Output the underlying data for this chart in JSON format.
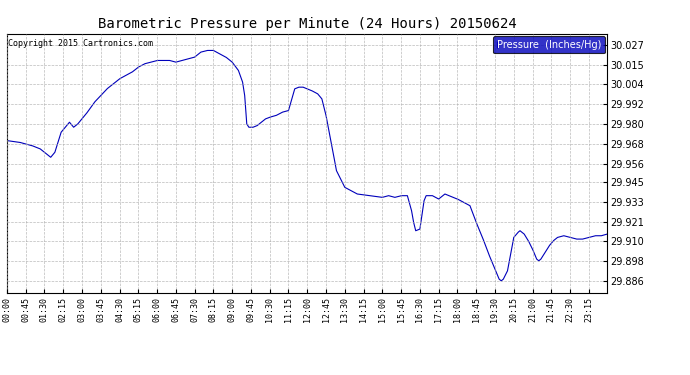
{
  "title": "Barometric Pressure per Minute (24 Hours) 20150624",
  "copyright": "Copyright 2015 Cartronics.com",
  "legend_label": "Pressure  (Inches/Hg)",
  "line_color": "#0000bb",
  "background_color": "#ffffff",
  "grid_color": "#aaaaaa",
  "yticks": [
    29.886,
    29.898,
    29.91,
    29.921,
    29.933,
    29.945,
    29.956,
    29.968,
    29.98,
    29.992,
    30.004,
    30.015,
    30.027
  ],
  "ylim": [
    29.879,
    30.034
  ],
  "xtick_labels": [
    "00:00",
    "00:45",
    "01:30",
    "02:15",
    "03:00",
    "03:45",
    "04:30",
    "05:15",
    "06:00",
    "06:45",
    "07:30",
    "08:15",
    "09:00",
    "09:45",
    "10:30",
    "11:15",
    "12:00",
    "12:45",
    "13:30",
    "14:15",
    "15:00",
    "15:45",
    "16:30",
    "17:15",
    "18:00",
    "18:45",
    "19:30",
    "20:15",
    "21:00",
    "21:45",
    "22:30",
    "23:15"
  ],
  "keypoints": [
    [
      0,
      29.97
    ],
    [
      30,
      29.969
    ],
    [
      60,
      29.967
    ],
    [
      80,
      29.965
    ],
    [
      90,
      29.963
    ],
    [
      100,
      29.961
    ],
    [
      105,
      29.96
    ],
    [
      115,
      29.963
    ],
    [
      130,
      29.975
    ],
    [
      150,
      29.981
    ],
    [
      160,
      29.978
    ],
    [
      170,
      29.98
    ],
    [
      190,
      29.986
    ],
    [
      210,
      29.993
    ],
    [
      240,
      30.001
    ],
    [
      270,
      30.007
    ],
    [
      300,
      30.011
    ],
    [
      315,
      30.014
    ],
    [
      330,
      30.016
    ],
    [
      345,
      30.017
    ],
    [
      360,
      30.018
    ],
    [
      390,
      30.018
    ],
    [
      405,
      30.017
    ],
    [
      420,
      30.018
    ],
    [
      435,
      30.019
    ],
    [
      450,
      30.02
    ],
    [
      465,
      30.023
    ],
    [
      480,
      30.024
    ],
    [
      495,
      30.024
    ],
    [
      510,
      30.022
    ],
    [
      525,
      30.02
    ],
    [
      540,
      30.017
    ],
    [
      555,
      30.012
    ],
    [
      565,
      30.005
    ],
    [
      570,
      29.997
    ],
    [
      575,
      29.98
    ],
    [
      580,
      29.978
    ],
    [
      590,
      29.978
    ],
    [
      600,
      29.979
    ],
    [
      610,
      29.981
    ],
    [
      620,
      29.983
    ],
    [
      630,
      29.984
    ],
    [
      645,
      29.985
    ],
    [
      660,
      29.987
    ],
    [
      675,
      29.988
    ],
    [
      690,
      30.001
    ],
    [
      700,
      30.002
    ],
    [
      710,
      30.002
    ],
    [
      720,
      30.001
    ],
    [
      730,
      30.0
    ],
    [
      745,
      29.998
    ],
    [
      755,
      29.995
    ],
    [
      765,
      29.985
    ],
    [
      775,
      29.972
    ],
    [
      790,
      29.952
    ],
    [
      810,
      29.942
    ],
    [
      840,
      29.938
    ],
    [
      870,
      29.937
    ],
    [
      900,
      29.936
    ],
    [
      915,
      29.937
    ],
    [
      930,
      29.936
    ],
    [
      945,
      29.937
    ],
    [
      960,
      29.937
    ],
    [
      970,
      29.928
    ],
    [
      975,
      29.921
    ],
    [
      980,
      29.916
    ],
    [
      990,
      29.917
    ],
    [
      1000,
      29.934
    ],
    [
      1005,
      29.937
    ],
    [
      1020,
      29.937
    ],
    [
      1035,
      29.935
    ],
    [
      1050,
      29.938
    ],
    [
      1060,
      29.937
    ],
    [
      1070,
      29.936
    ],
    [
      1080,
      29.935
    ],
    [
      1095,
      29.933
    ],
    [
      1110,
      29.931
    ],
    [
      1125,
      29.921
    ],
    [
      1140,
      29.912
    ],
    [
      1155,
      29.902
    ],
    [
      1165,
      29.896
    ],
    [
      1170,
      29.893
    ],
    [
      1180,
      29.887
    ],
    [
      1185,
      29.886
    ],
    [
      1190,
      29.887
    ],
    [
      1200,
      29.892
    ],
    [
      1210,
      29.905
    ],
    [
      1215,
      29.912
    ],
    [
      1225,
      29.915
    ],
    [
      1230,
      29.916
    ],
    [
      1240,
      29.914
    ],
    [
      1250,
      29.91
    ],
    [
      1260,
      29.905
    ],
    [
      1270,
      29.899
    ],
    [
      1275,
      29.898
    ],
    [
      1280,
      29.899
    ],
    [
      1290,
      29.903
    ],
    [
      1300,
      29.907
    ],
    [
      1310,
      29.91
    ],
    [
      1320,
      29.912
    ],
    [
      1335,
      29.913
    ],
    [
      1350,
      29.912
    ],
    [
      1365,
      29.911
    ],
    [
      1380,
      29.911
    ],
    [
      1395,
      29.912
    ],
    [
      1410,
      29.913
    ],
    [
      1425,
      29.913
    ],
    [
      1439,
      29.914
    ]
  ]
}
